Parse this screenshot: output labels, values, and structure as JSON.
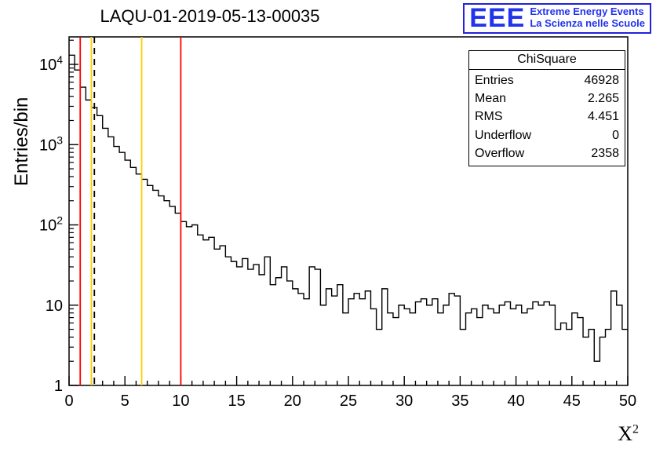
{
  "title": "LAQU-01-2019-05-13-00035",
  "logo": {
    "acronym": "EEE",
    "line1": "Extreme Energy Events",
    "line2": "La Scienza nelle Scuole",
    "color": "#2233ee"
  },
  "stats": {
    "title": "ChiSquare",
    "rows": [
      {
        "label": "Entries",
        "value": "46928"
      },
      {
        "label": "Mean",
        "value": "2.265"
      },
      {
        "label": "RMS",
        "value": "4.451"
      },
      {
        "label": "Underflow",
        "value": "0"
      },
      {
        "label": "Overflow",
        "value": "2358"
      }
    ]
  },
  "chart_data": {
    "type": "histogram-step",
    "title": "LAQU-01-2019-05-13-00035",
    "xlabel": "X^2",
    "xlabel_base": "X",
    "xlabel_sup": "2",
    "ylabel": "Entries/bin",
    "x_min": 0,
    "x_max": 50,
    "bin_width": 0.5,
    "y_scale": "log",
    "y_min": 1,
    "y_max": 22000,
    "x_major_ticks": [
      0,
      5,
      10,
      15,
      20,
      25,
      30,
      35,
      40,
      45,
      50
    ],
    "y_major_ticks": [
      1,
      10,
      100,
      1000,
      10000
    ],
    "grid": false,
    "legend": "none",
    "line_color": "#000000",
    "bins": [
      13000,
      8500,
      5200,
      3600,
      2900,
      2300,
      1600,
      1250,
      950,
      800,
      640,
      520,
      430,
      370,
      310,
      270,
      230,
      200,
      170,
      140,
      110,
      95,
      100,
      75,
      65,
      70,
      50,
      55,
      40,
      35,
      30,
      38,
      28,
      32,
      24,
      40,
      18,
      22,
      30,
      20,
      16,
      14,
      12,
      30,
      28,
      10,
      16,
      13,
      18,
      8,
      12,
      14,
      12,
      15,
      9,
      5,
      16,
      8,
      7,
      10,
      9,
      8,
      11,
      12,
      10,
      12,
      8,
      10,
      14,
      13,
      5,
      8,
      9,
      7,
      10,
      9,
      8,
      10,
      11,
      9,
      10,
      8,
      9,
      11,
      10,
      11,
      10,
      5,
      6,
      5,
      8,
      7,
      4,
      5,
      2,
      4,
      5,
      15,
      10,
      5
    ],
    "markers": [
      {
        "x": 1,
        "color": "#ff0000",
        "style": "solid",
        "name": "red-cut-low"
      },
      {
        "x": 2,
        "color": "#ffcc00",
        "style": "solid",
        "name": "yellow-cut-low"
      },
      {
        "x": 2.265,
        "color": "#000000",
        "style": "dashed",
        "name": "mean-line"
      },
      {
        "x": 6.5,
        "color": "#ffcc00",
        "style": "solid",
        "name": "yellow-cut-high"
      },
      {
        "x": 10,
        "color": "#ff0000",
        "style": "solid",
        "name": "red-cut-high"
      }
    ]
  }
}
